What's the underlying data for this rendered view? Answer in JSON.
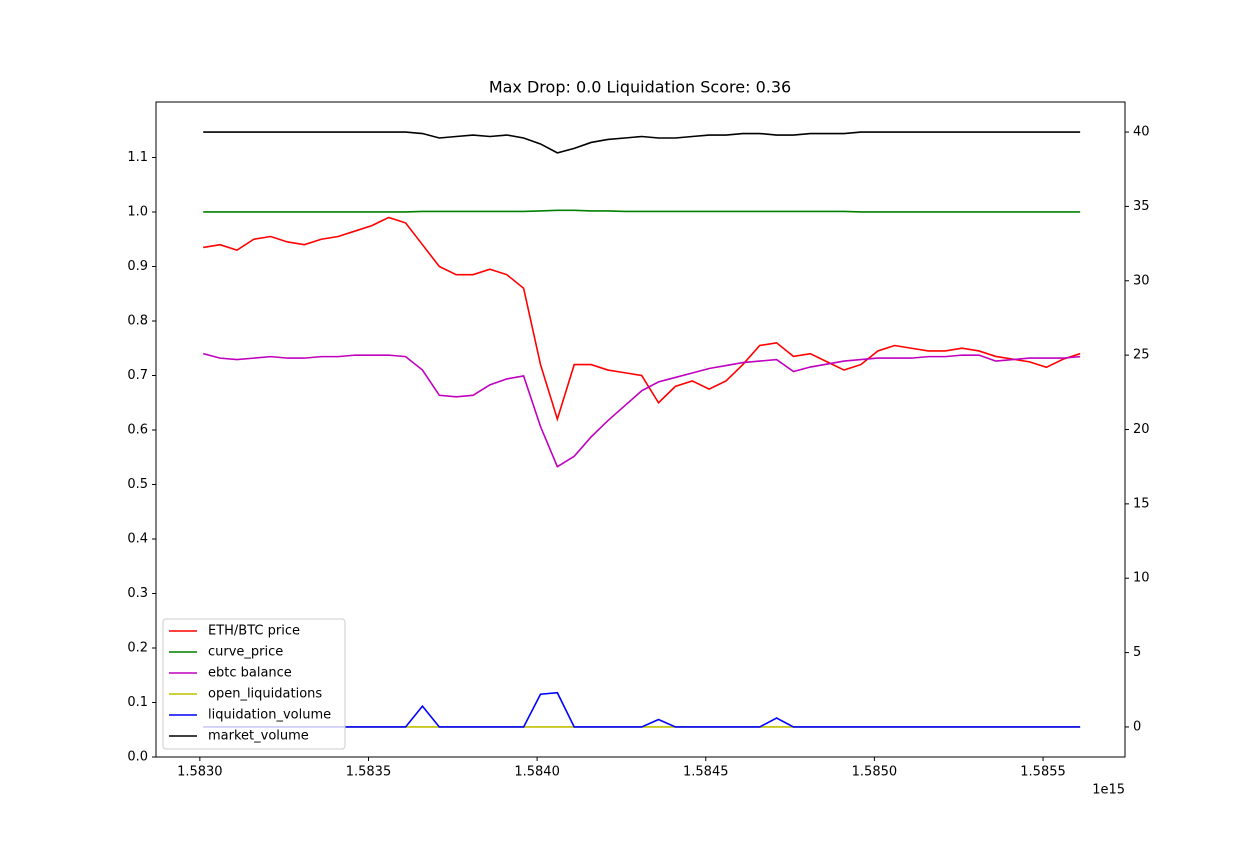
{
  "chart_data": {
    "type": "line",
    "title": "Max Drop: 0.0 Liquidation Score: 0.36",
    "x_offset_label": "1e15",
    "x": [
      1.58301,
      1.58306,
      1.58311,
      1.58316,
      1.58321,
      1.58326,
      1.58331,
      1.58336,
      1.58341,
      1.58346,
      1.58351,
      1.58356,
      1.58361,
      1.58366,
      1.58371,
      1.58376,
      1.58381,
      1.58386,
      1.58391,
      1.58396,
      1.58401,
      1.58406,
      1.58411,
      1.58416,
      1.58421,
      1.58426,
      1.58431,
      1.58436,
      1.58441,
      1.58446,
      1.58451,
      1.58456,
      1.58461,
      1.58466,
      1.58471,
      1.58476,
      1.58481,
      1.58486,
      1.58491,
      1.58496,
      1.58501,
      1.58506,
      1.58511,
      1.58516,
      1.58521,
      1.58526,
      1.58531,
      1.58536,
      1.58541,
      1.58546,
      1.58551,
      1.58556,
      1.58561
    ],
    "series": [
      {
        "name": "ETH/BTC price",
        "color": "#ff0000",
        "axis": "y",
        "values": [
          0.935,
          0.94,
          0.93,
          0.95,
          0.955,
          0.945,
          0.94,
          0.95,
          0.955,
          0.965,
          0.975,
          0.99,
          0.98,
          0.94,
          0.9,
          0.885,
          0.885,
          0.895,
          0.885,
          0.86,
          0.72,
          0.62,
          0.72,
          0.72,
          0.71,
          0.705,
          0.7,
          0.65,
          0.68,
          0.69,
          0.675,
          0.69,
          0.72,
          0.755,
          0.76,
          0.735,
          0.74,
          0.725,
          0.71,
          0.72,
          0.745,
          0.755,
          0.75,
          0.745,
          0.745,
          0.75,
          0.745,
          0.735,
          0.73,
          0.725,
          0.715,
          0.73,
          0.74
        ]
      },
      {
        "name": "curve_price",
        "color": "#008000",
        "axis": "y",
        "values": [
          1.0,
          1.0,
          1.0,
          1.0,
          1.0,
          1.0,
          1.0,
          1.0,
          1.0,
          1.0,
          1.0,
          1.0,
          1.0,
          1.001,
          1.001,
          1.001,
          1.001,
          1.001,
          1.001,
          1.001,
          1.002,
          1.003,
          1.003,
          1.002,
          1.002,
          1.001,
          1.001,
          1.001,
          1.001,
          1.001,
          1.001,
          1.001,
          1.001,
          1.001,
          1.001,
          1.001,
          1.001,
          1.001,
          1.001,
          1.0,
          1.0,
          1.0,
          1.0,
          1.0,
          1.0,
          1.0,
          1.0,
          1.0,
          1.0,
          1.0,
          1.0,
          1.0,
          1.0
        ]
      },
      {
        "name": "ebtc balance",
        "color": "#bf00bf",
        "axis": "y2",
        "values": [
          25.1,
          24.8,
          24.7,
          24.8,
          24.9,
          24.8,
          24.8,
          24.9,
          24.9,
          25.0,
          25.0,
          25.0,
          24.9,
          24.0,
          22.3,
          22.2,
          22.3,
          23.0,
          23.4,
          23.6,
          20.2,
          17.5,
          18.2,
          19.5,
          20.6,
          21.6,
          22.6,
          23.2,
          23.5,
          23.8,
          24.1,
          24.3,
          24.5,
          24.6,
          24.7,
          23.9,
          24.2,
          24.4,
          24.6,
          24.7,
          24.8,
          24.8,
          24.8,
          24.9,
          24.9,
          25.0,
          25.0,
          24.6,
          24.7,
          24.8,
          24.8,
          24.8,
          24.9
        ]
      },
      {
        "name": "open_liquidations",
        "color": "#bfbf00",
        "axis": "y2",
        "values": [
          0,
          0,
          0,
          0,
          0,
          0,
          0,
          0,
          0,
          0,
          0,
          0,
          0,
          0,
          0,
          0,
          0,
          0,
          0,
          0,
          0,
          0,
          0,
          0,
          0,
          0,
          0,
          0,
          0,
          0,
          0,
          0,
          0,
          0,
          0,
          0,
          0,
          0,
          0,
          0,
          0,
          0,
          0,
          0,
          0,
          0,
          0,
          0,
          0,
          0,
          0,
          0,
          0
        ]
      },
      {
        "name": "liquidation_volume",
        "color": "#0000ff",
        "axis": "y2",
        "values": [
          0,
          0,
          0,
          0,
          0,
          0,
          0,
          0,
          0,
          0,
          0,
          0,
          0,
          1.4,
          0,
          0,
          0,
          0,
          0,
          0,
          2.2,
          2.3,
          0,
          0,
          0,
          0,
          0,
          0.5,
          0,
          0,
          0,
          0,
          0,
          0,
          0.6,
          0,
          0,
          0,
          0,
          0,
          0,
          0,
          0,
          0,
          0,
          0,
          0,
          0,
          0,
          0,
          0,
          0,
          0
        ]
      },
      {
        "name": "market_volume",
        "color": "#000000",
        "axis": "y2",
        "values": [
          40.0,
          40.0,
          40.0,
          40.0,
          40.0,
          40.0,
          40.0,
          40.0,
          40.0,
          40.0,
          40.0,
          40.0,
          40.0,
          39.9,
          39.6,
          39.7,
          39.8,
          39.7,
          39.8,
          39.6,
          39.2,
          38.6,
          38.9,
          39.3,
          39.5,
          39.6,
          39.7,
          39.6,
          39.6,
          39.7,
          39.8,
          39.8,
          39.9,
          39.9,
          39.8,
          39.8,
          39.9,
          39.9,
          39.9,
          40.0,
          40.0,
          40.0,
          40.0,
          40.0,
          40.0,
          40.0,
          40.0,
          40.0,
          40.0,
          40.0,
          40.0,
          40.0,
          40.0
        ]
      }
    ],
    "xlim": [
      1.58287,
      1.585743
    ],
    "xticks": [
      {
        "value": 1.583,
        "label": "1.5830"
      },
      {
        "value": 1.5835,
        "label": "1.5835"
      },
      {
        "value": 1.584,
        "label": "1.5840"
      },
      {
        "value": 1.5845,
        "label": "1.5845"
      },
      {
        "value": 1.585,
        "label": "1.5850"
      },
      {
        "value": 1.5855,
        "label": "1.5855"
      }
    ],
    "ylim": [
      0,
      1.2018
    ],
    "yticks": [
      {
        "value": 0,
        "label": "0.0"
      },
      0.1,
      0.2,
      0.3,
      0.4,
      0.5,
      0.6,
      0.7,
      0.8,
      0.9,
      {
        "value": 1,
        "label": "1.0"
      },
      1.1
    ],
    "y2lim": [
      -2.02,
      42.02
    ],
    "y2ticks": [
      0,
      5,
      10,
      15,
      20,
      25,
      30,
      35,
      40
    ],
    "legend": "lower left"
  }
}
